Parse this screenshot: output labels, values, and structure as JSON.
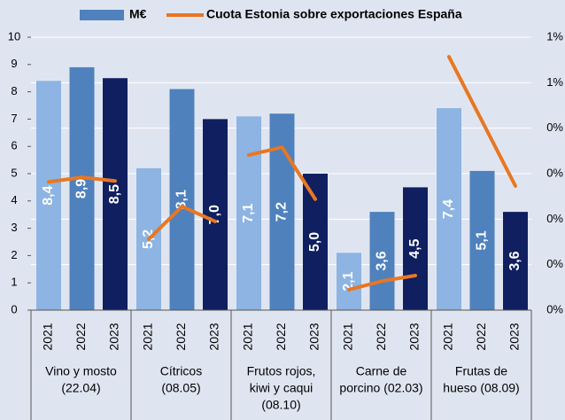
{
  "chart_data": {
    "type": "bar_line",
    "categories": [
      "2021",
      "2022",
      "2023",
      "2021",
      "2022",
      "2023",
      "2021",
      "2022",
      "2023",
      "2021",
      "2022",
      "2023",
      "2021",
      "2022",
      "2023"
    ],
    "groups": [
      [
        "Vino y mosto",
        "(22.04)"
      ],
      [
        "Cítricos",
        "(08.05)"
      ],
      [
        "Frutos rojos,",
        "kiwi  y caqui",
        "(08.10)"
      ],
      [
        "Carne de",
        "porcino (02.03)"
      ],
      [
        "Frutas de",
        "hueso (08.09)"
      ]
    ],
    "legend_bar": "M€",
    "bar_colors": [
      "#8db4e2",
      "#4f81bd",
      "#0f1f5f"
    ],
    "series": [
      {
        "name": "M€",
        "type": "bar",
        "color": "#4f81bd",
        "values": [
          8.4,
          8.9,
          8.5,
          5.2,
          8.1,
          7.0,
          7.1,
          7.2,
          5.0,
          2.1,
          3.6,
          4.5,
          7.4,
          5.1,
          3.6
        ],
        "value_labels": [
          "8,4",
          "8,9",
          "8,5",
          "5,2",
          "8,1",
          "7,0",
          "7,1",
          "7,2",
          "5,0",
          "2,1",
          "3,6",
          "4,5",
          "7,4",
          "5,1",
          "3,6"
        ]
      },
      {
        "name": "Cuota Estonia sobre exportaciones España",
        "type": "line",
        "axis": "y2",
        "color": "#e87722",
        "values": [
          0.282,
          0.292,
          0.284,
          0.156,
          0.228,
          0.195,
          0.341,
          0.358,
          0.244,
          0.045,
          0.064,
          0.076,
          0.557,
          0.415,
          0.273
        ]
      }
    ],
    "ylim": [
      0,
      10
    ],
    "yticks": [
      0,
      1,
      2,
      3,
      4,
      5,
      6,
      7,
      8,
      9,
      10
    ],
    "y2lim": [
      0,
      0.6
    ],
    "y2ticks": [
      {
        "value": 0,
        "label": "0%"
      },
      {
        "value": 0.1,
        "label": "0%"
      },
      {
        "value": 0.2,
        "label": "0%"
      },
      {
        "value": 0.3,
        "label": "0%"
      },
      {
        "value": 0.4,
        "label": "0%"
      },
      {
        "value": 0.5,
        "label": "1%"
      },
      {
        "value": 0.6,
        "label": "1%"
      }
    ],
    "grid": true
  }
}
